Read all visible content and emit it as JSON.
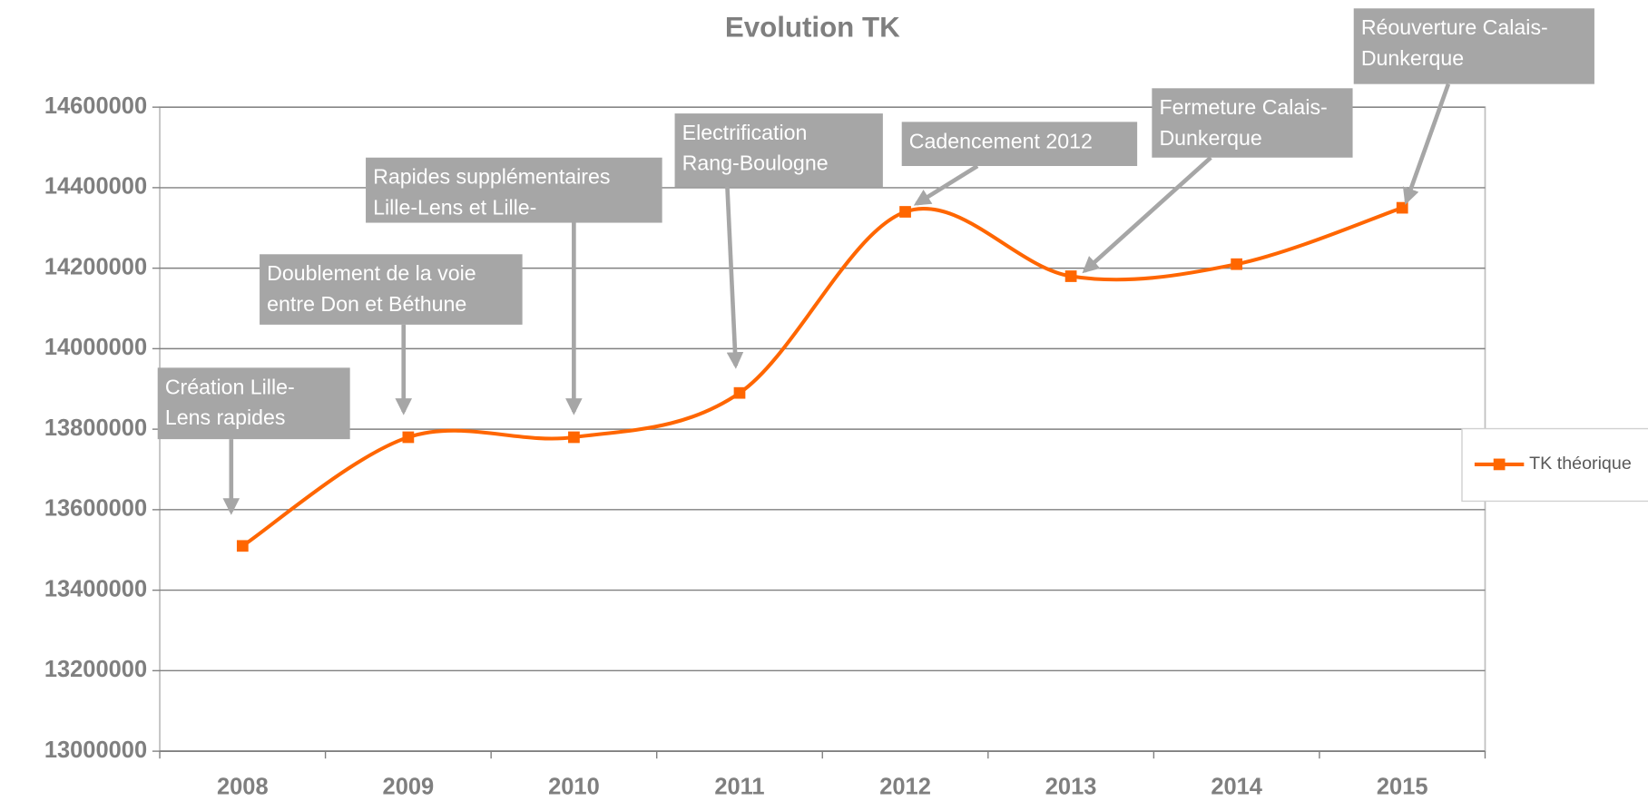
{
  "chart_data": {
    "type": "line",
    "title": "Evolution TK",
    "categories": [
      "2008",
      "2009",
      "2010",
      "2011",
      "2012",
      "2013",
      "2014",
      "2015"
    ],
    "series": [
      {
        "name": "TK théorique",
        "color": "#ff6600",
        "values": [
          13510000,
          13780000,
          13780000,
          13890000,
          14340000,
          14180000,
          14210000,
          14350000
        ]
      }
    ],
    "ylim": [
      13000000,
      14600000
    ],
    "yticks": [
      13000000,
      13200000,
      13400000,
      13600000,
      13800000,
      14000000,
      14200000,
      14400000,
      14600000
    ],
    "grid": true,
    "smooth": true,
    "legend": "right",
    "annotations": [
      {
        "lines": [
          "Création Lille-",
          "Lens rapides"
        ]
      },
      {
        "lines": [
          "Doublement de la voie",
          "entre Don et Béthune"
        ]
      },
      {
        "lines": [
          "Rapides supplémentaires",
          "Lille-Lens et Lille-"
        ]
      },
      {
        "lines": [
          "Electrification",
          "Rang-Boulogne"
        ]
      },
      {
        "lines": [
          "Cadencement 2012"
        ]
      },
      {
        "lines": [
          "Fermeture Calais-",
          "Dunkerque"
        ]
      },
      {
        "lines": [
          "Réouverture Calais-",
          "Dunkerque"
        ]
      }
    ]
  }
}
